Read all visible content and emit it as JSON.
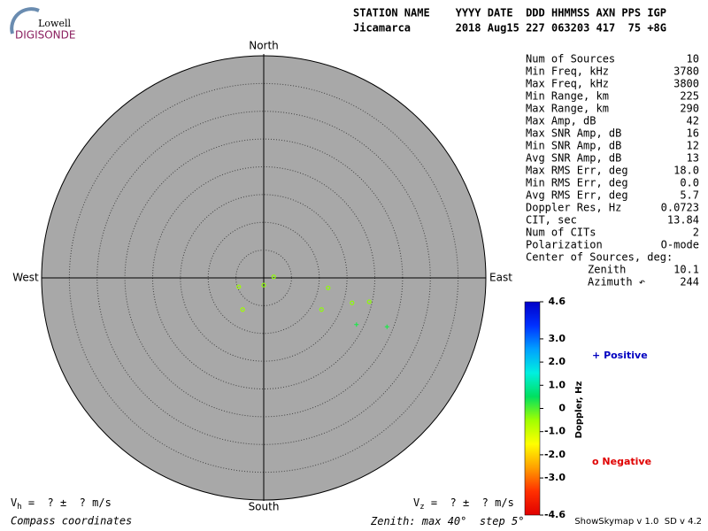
{
  "logo": {
    "top": "Lowell",
    "bottom": "DIGISONDE"
  },
  "header": {
    "line1": "STATION NAME    YYYY DATE  DDD HHMMSS AXN PPS IGP",
    "line2": "Jicamarca       2018 Aug15 227 063203 417  75 +8G"
  },
  "compass": {
    "north": "North",
    "south": "South",
    "east": "East",
    "west": "West"
  },
  "stats": {
    "rows": [
      [
        "Num of Sources",
        "10"
      ],
      [
        "Min Freq, kHz",
        "3780"
      ],
      [
        "Max Freq, kHz",
        "3800"
      ],
      [
        "Min Range, km",
        "225"
      ],
      [
        "Max Range, km",
        "290"
      ],
      [
        "Max Amp, dB",
        "42"
      ],
      [
        "Max SNR Amp, dB",
        "16"
      ],
      [
        "Min SNR Amp, dB",
        "12"
      ],
      [
        "Avg SNR Amp, dB",
        "13"
      ],
      [
        "Max RMS Err, deg",
        "18.0"
      ],
      [
        "Min RMS Err, deg",
        "0.0"
      ],
      [
        "Avg RMS Err, deg",
        "5.7"
      ],
      [
        "Doppler Res, Hz",
        "0.0723"
      ],
      [
        "CIT, sec",
        "13.84"
      ],
      [
        "Num of CITs",
        "2"
      ],
      [
        "Polarization",
        "O-mode"
      ]
    ],
    "center": {
      "title": "Center of Sources, deg:",
      "rows": [
        [
          "Zenith",
          "10.1"
        ],
        [
          "Azimuth ↶",
          "244"
        ]
      ]
    }
  },
  "chart_data": {
    "type": "skymap",
    "zenith": {
      "max": 40,
      "step": 5,
      "prefix": "Zenith: max ",
      "mid": "°  step ",
      "suffix": "°"
    },
    "sources": [
      {
        "x": 1.8,
        "y": 0.2,
        "doppler": -0.4
      },
      {
        "x": 0.0,
        "y": -1.3,
        "doppler": -0.4
      },
      {
        "x": -4.5,
        "y": -1.6,
        "doppler": -0.5
      },
      {
        "x": 11.6,
        "y": -1.8,
        "doppler": -0.4
      },
      {
        "x": -3.8,
        "y": -5.7,
        "doppler": -0.5
      },
      {
        "x": 10.4,
        "y": -5.7,
        "doppler": -0.4
      },
      {
        "x": 15.9,
        "y": -4.5,
        "doppler": -0.4
      },
      {
        "x": 19.0,
        "y": -4.3,
        "doppler": -0.4
      },
      {
        "x": 16.7,
        "y": -8.4,
        "doppler": 0.3
      },
      {
        "x": 22.2,
        "y": -8.8,
        "doppler": 0.3
      }
    ],
    "colorbar": {
      "label": "Doppler, Hz",
      "lim": [
        -4.6,
        4.6
      ],
      "colors": [
        "#0000c8",
        "#0030ff",
        "#00a0ff",
        "#00f0e0",
        "#00e060",
        "#a0ff00",
        "#ffff00",
        "#ffa000",
        "#ff3000",
        "#e00000"
      ],
      "ticks": [
        4.6,
        {
          "value": 3,
          "label": "3.0"
        },
        {
          "value": 2,
          "label": "2.0"
        },
        {
          "value": 1,
          "label": "1.0"
        },
        0,
        {
          "value": -1,
          "label": "-1.0"
        },
        {
          "value": -2,
          "label": "-2.0"
        },
        {
          "value": -3,
          "label": "-3.0"
        },
        -4.6
      ]
    },
    "legend": {
      "positive_symbol": "+",
      "positive": "Positive",
      "negative_symbol": "o",
      "negative": "Negative"
    }
  },
  "footer": {
    "vh": [
      "V",
      "h",
      " =  ? ±  ? m/s"
    ],
    "vz": [
      "V",
      "z",
      " =  ? ±  ? m/s"
    ],
    "coords": "Compass coordinates",
    "version": "ShowSkymap v 1.0  SD v 4.2"
  }
}
